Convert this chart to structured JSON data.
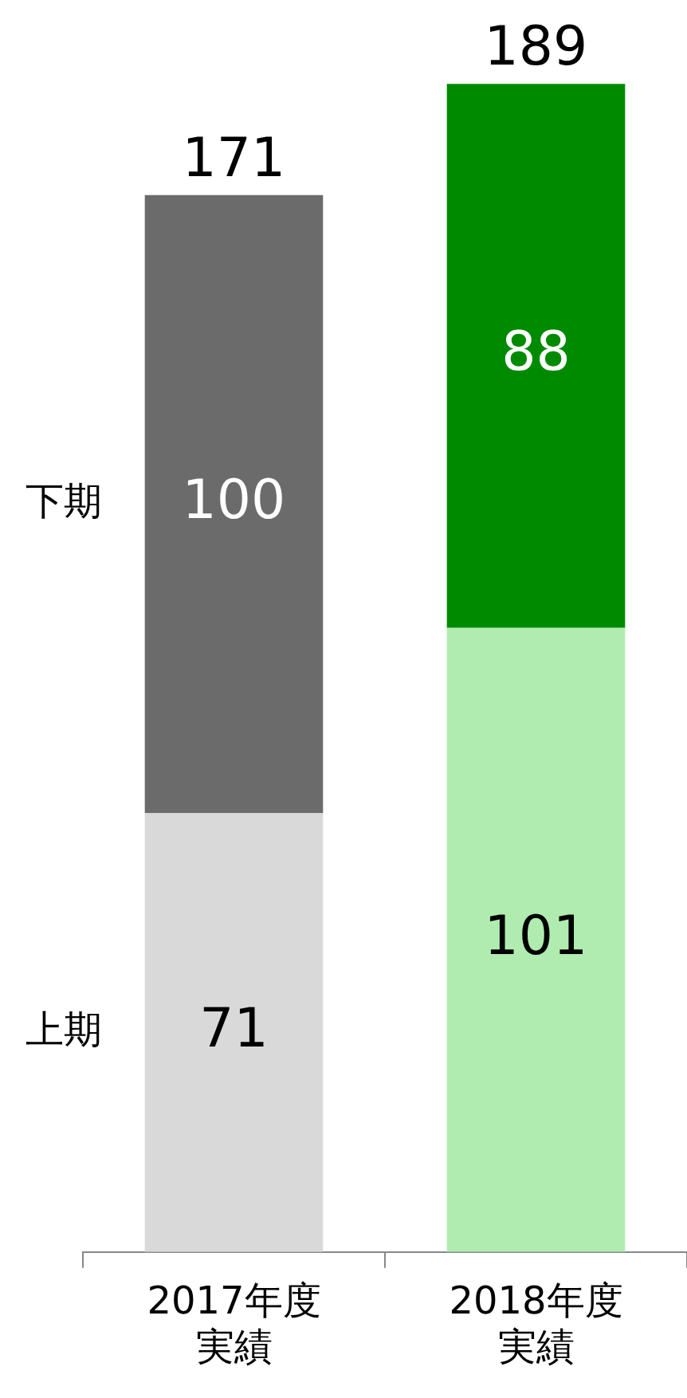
{
  "chart_data": {
    "type": "bar",
    "stacked": true,
    "categories": [
      "2017年度実績",
      "2018年度実績"
    ],
    "series": [
      {
        "name": "上期",
        "colors": [
          "#d9d9d9",
          "#b0ecb0"
        ],
        "values": [
          71,
          101
        ]
      },
      {
        "name": "下期",
        "colors": [
          "#6b6b6b",
          "#008a00"
        ],
        "values": [
          100,
          88
        ]
      }
    ],
    "data_labels": true,
    "totals": [
      "171",
      "189"
    ],
    "legend": false,
    "grid": false
  }
}
